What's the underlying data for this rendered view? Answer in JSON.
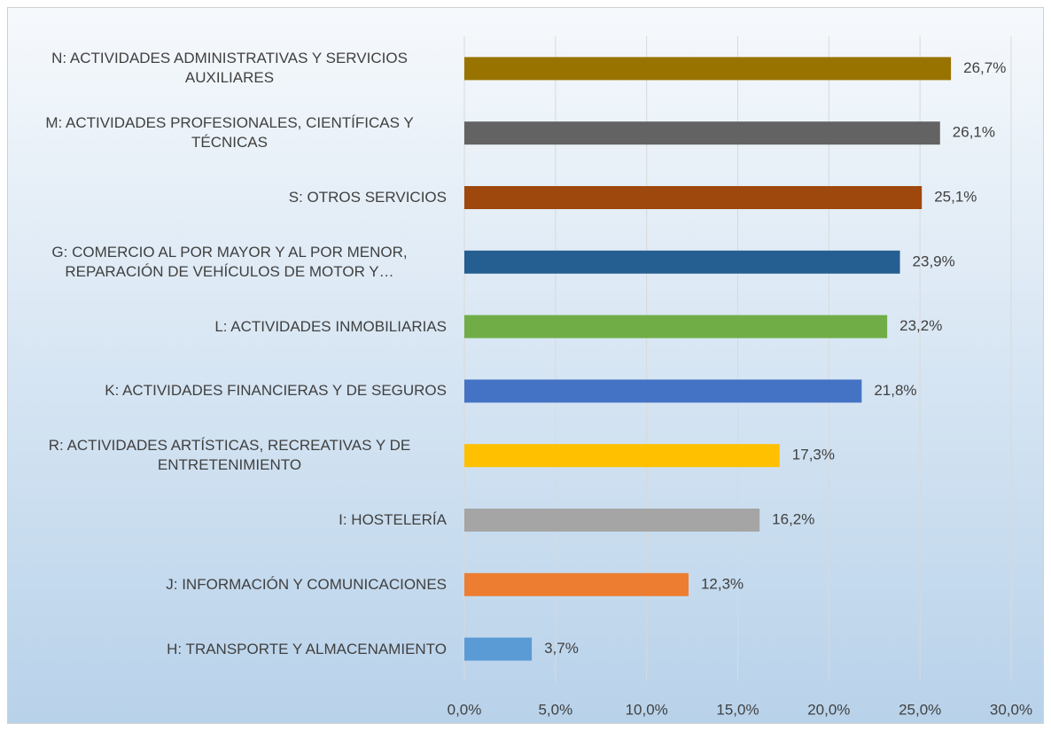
{
  "chart_data": {
    "type": "barh",
    "categories": [
      "N: ACTIVIDADES ADMINISTRATIVAS Y SERVICIOS AUXILIARES",
      "M: ACTIVIDADES PROFESIONALES, CIENTÍFICAS Y TÉCNICAS",
      "S: OTROS SERVICIOS",
      "G: COMERCIO AL POR MAYOR Y AL POR MENOR, REPARACIÓN DE VEHÍCULOS DE MOTOR Y…",
      "L: ACTIVIDADES INMOBILIARIAS",
      "K: ACTIVIDADES FINANCIERAS Y DE SEGUROS",
      "R: ACTIVIDADES ARTÍSTICAS, RECREATIVAS Y DE ENTRETENIMIENTO",
      "I: HOSTELERÍA",
      "J: INFORMACIÓN Y COMUNICACIONES",
      "H: TRANSPORTE Y ALMACENAMIENTO"
    ],
    "values": [
      26.7,
      26.1,
      25.1,
      23.9,
      23.2,
      21.8,
      17.3,
      16.2,
      12.3,
      3.7
    ],
    "value_labels": [
      "26,7%",
      "26,1%",
      "25,1%",
      "23,9%",
      "23,2%",
      "21,8%",
      "17,3%",
      "16,2%",
      "12,3%",
      "3,7%"
    ],
    "colors": [
      "#997300",
      "#636363",
      "#9e480e",
      "#255e91",
      "#70ad47",
      "#4472c4",
      "#ffc000",
      "#a5a5a5",
      "#ed7d31",
      "#5b9bd5"
    ],
    "xlim": [
      0,
      30
    ],
    "xticks": [
      {
        "value": 0,
        "label": "0,0%"
      },
      {
        "value": 5,
        "label": "5,0%"
      },
      {
        "value": 10,
        "label": "10,0%"
      },
      {
        "value": 15,
        "label": "15,0%"
      },
      {
        "value": 20,
        "label": "20,0%"
      },
      {
        "value": 25,
        "label": "25,0%"
      },
      {
        "value": 30,
        "label": "30,0%"
      }
    ],
    "grid": true
  }
}
